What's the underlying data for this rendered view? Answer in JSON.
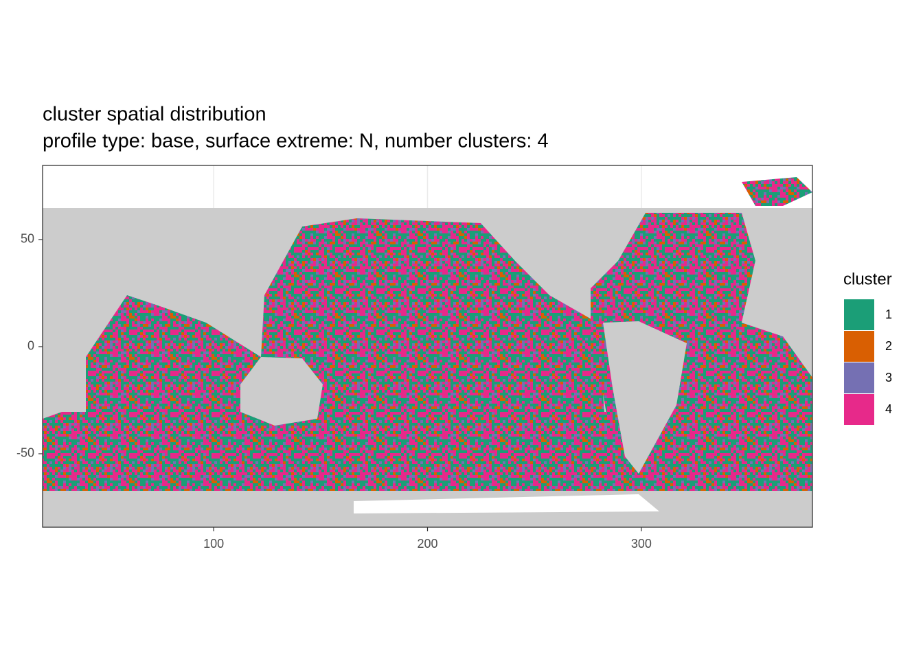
{
  "chart_data": {
    "type": "raster",
    "title": "cluster spatial distribution",
    "subtitle": "profile type: base, surface extreme: N, number clusters: 4",
    "xlim": [
      20,
      380
    ],
    "xticks": [
      100,
      200,
      300
    ],
    "ylim": [
      -84.3,
      84.6
    ],
    "yticks": [
      -50,
      0,
      50
    ],
    "grid": true,
    "legend_title": "cluster",
    "series": [
      {
        "name": "1",
        "color": "#1B9E77"
      },
      {
        "name": "2",
        "color": "#D95F02"
      },
      {
        "name": "3",
        "color": "#7570B3"
      },
      {
        "name": "4",
        "color": "#E7298A"
      }
    ]
  }
}
